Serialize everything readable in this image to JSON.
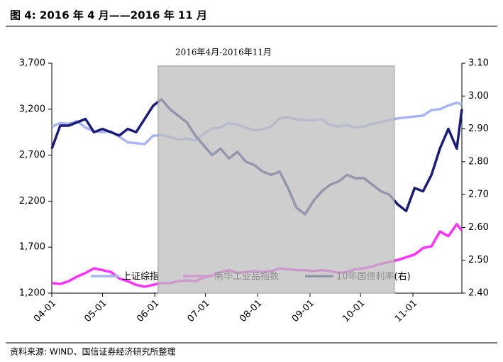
{
  "chart_data": {
    "type": "line",
    "figure_title": "图 4: 2016 年 4 月——2016 年 11 月",
    "title": "2016年4月-2016年11月",
    "source": "资料来源: WIND、国信证券经济研究所整理",
    "x": [
      "04-01",
      "04-06",
      "04-11",
      "04-16",
      "04-21",
      "04-26",
      "05-01",
      "05-06",
      "05-11",
      "05-16",
      "05-21",
      "05-26",
      "05-31",
      "06-05",
      "06-10",
      "06-15",
      "06-20",
      "06-25",
      "06-30",
      "07-05",
      "07-10",
      "07-15",
      "07-20",
      "07-25",
      "07-30",
      "08-04",
      "08-09",
      "08-14",
      "08-19",
      "08-24",
      "08-29",
      "09-03",
      "09-08",
      "09-13",
      "09-18",
      "09-23",
      "09-28",
      "10-03",
      "10-08",
      "10-13",
      "10-18",
      "10-23",
      "10-28",
      "11-02",
      "11-07",
      "11-12",
      "11-17",
      "11-22",
      "11-27",
      "11-30"
    ],
    "xlim": [
      "04-01",
      "11-30"
    ],
    "xticks": [
      "04-01",
      "05-01",
      "06-01",
      "07-01",
      "08-01",
      "09-01",
      "10-01",
      "11-01"
    ],
    "ylim": [
      1200,
      3700
    ],
    "yticks": [
      {
        "value": 1200,
        "label": "1,200"
      },
      {
        "value": 1700,
        "label": "1,700"
      },
      {
        "value": 2200,
        "label": "2,200"
      },
      {
        "value": 2700,
        "label": "2,700"
      },
      {
        "value": 3200,
        "label": "3,200"
      },
      {
        "value": 3700,
        "label": "3,700"
      }
    ],
    "y2lim": [
      2.4,
      3.1
    ],
    "y2ticks": [
      {
        "value": 2.4,
        "label": "2.40"
      },
      {
        "value": 2.5,
        "label": "2.50"
      },
      {
        "value": 2.6,
        "label": "2.60"
      },
      {
        "value": 2.7,
        "label": "2.70"
      },
      {
        "value": 2.8,
        "label": "2.80"
      },
      {
        "value": 2.9,
        "label": "2.90"
      },
      {
        "value": 3.0,
        "label": "3.00"
      },
      {
        "value": 3.1,
        "label": "3.10"
      }
    ],
    "highlight": {
      "from": "06-03",
      "to": "10-21",
      "top": 3670,
      "color": "#bdbdbd"
    },
    "series": [
      {
        "name": "上证综指",
        "color": "#a9b5f2",
        "values": [
          3010,
          3050,
          3040,
          3070,
          3000,
          2960,
          2950,
          2960,
          2900,
          2840,
          2830,
          2820,
          2910,
          2920,
          2900,
          2870,
          2880,
          2860,
          2930,
          2990,
          3000,
          3050,
          3030,
          3000,
          2970,
          2980,
          3010,
          3100,
          3110,
          3090,
          3080,
          3080,
          3090,
          3030,
          3010,
          3030,
          3000,
          3010,
          3040,
          3060,
          3080,
          3100,
          3110,
          3120,
          3130,
          3190,
          3200,
          3240,
          3270,
          3250
        ]
      },
      {
        "name": "南华工业品指数",
        "color": "#ff33ff",
        "values": [
          1310,
          1300,
          1330,
          1380,
          1420,
          1470,
          1450,
          1430,
          1360,
          1330,
          1290,
          1270,
          1290,
          1310,
          1310,
          1330,
          1340,
          1330,
          1370,
          1390,
          1430,
          1450,
          1420,
          1430,
          1440,
          1430,
          1440,
          1470,
          1460,
          1450,
          1450,
          1440,
          1450,
          1440,
          1420,
          1430,
          1460,
          1470,
          1490,
          1520,
          1540,
          1560,
          1590,
          1620,
          1690,
          1710,
          1870,
          1820,
          1950,
          1880
        ]
      },
      {
        "name": "10年国债利率(右)",
        "color": "#1c1c78",
        "axis": "y2",
        "values": [
          2.84,
          2.91,
          2.91,
          2.92,
          2.93,
          2.89,
          2.9,
          2.89,
          2.88,
          2.9,
          2.89,
          2.93,
          2.97,
          2.99,
          2.96,
          2.94,
          2.92,
          2.88,
          2.85,
          2.82,
          2.84,
          2.81,
          2.83,
          2.8,
          2.79,
          2.77,
          2.76,
          2.77,
          2.72,
          2.66,
          2.64,
          2.68,
          2.71,
          2.73,
          2.74,
          2.76,
          2.75,
          2.75,
          2.73,
          2.71,
          2.7,
          2.67,
          2.65,
          2.72,
          2.71,
          2.76,
          2.84,
          2.9,
          2.84,
          2.96
        ]
      }
    ]
  }
}
